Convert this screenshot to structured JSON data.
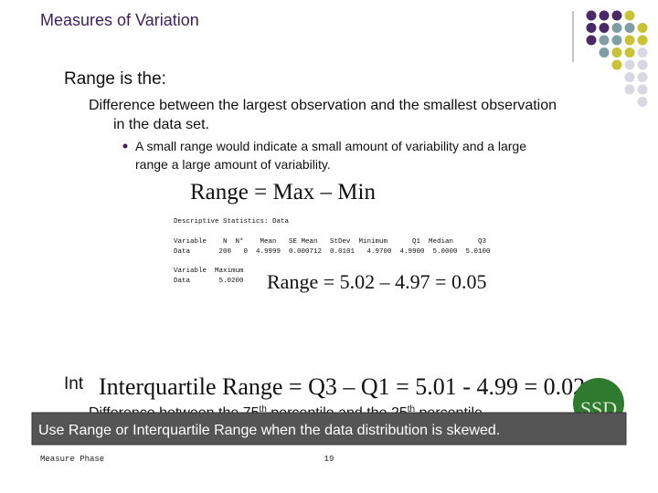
{
  "header": {
    "title": "Measures of Variation"
  },
  "range_section": {
    "heading": "Range is the:",
    "definition": [
      "Difference between the largest observation and the smallest observation",
      "in the data set."
    ],
    "bullet": [
      "A small range would indicate a small amount of variability and a large",
      "range a large amount of variability."
    ],
    "formula": "Range = Max – Min",
    "output": {
      "title": "Descriptive Statistics: Data",
      "row1_header": "Variable    N  N*    Mean   SE Mean   StDev  Minimum      Q1  Median      Q3",
      "row1_data": "Data       200   0  4.9999  0.000712  0.0101   4.9700  4.9900  5.0000  5.0100",
      "row2_header": "Variable  Maximum",
      "row2_data": "Data       5.0200"
    },
    "calculation": "Range = 5.02 – 4.97 = 0.05"
  },
  "iqr_section": {
    "heading": "Int",
    "formula": "Interquartile Range = Q3 – Q1 = 5.01 - 4.99 = 0.02",
    "definition": {
      "part1": "Difference between the 75",
      "sup1": "th",
      "part2": " percentile and the 25",
      "sup2": "th",
      "part3": " percentile."
    }
  },
  "banner": "Use Range or Interquartile Range when the data distribution is skewed.",
  "logo": "SSD",
  "footer": {
    "left": "Measure Phase",
    "page": "19"
  }
}
